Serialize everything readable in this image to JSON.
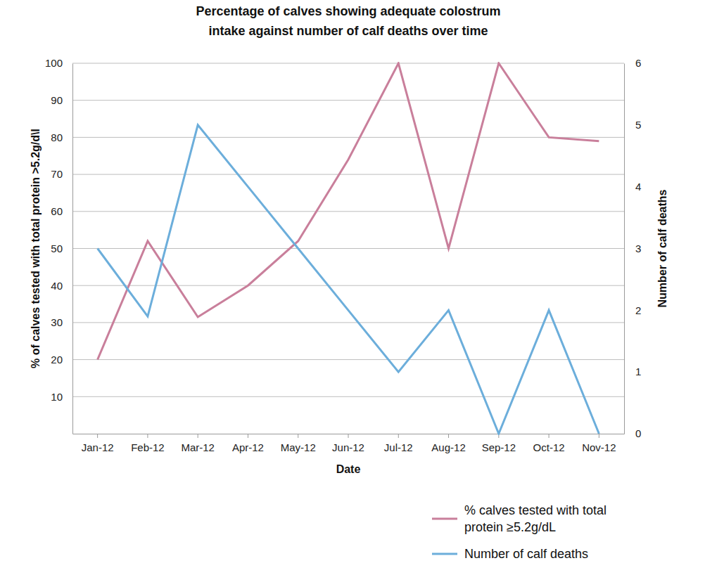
{
  "chart_data": {
    "type": "line",
    "title": "Percentage of calves showing adequate colostrum intake against number of calf deaths over time",
    "x_label": "Date",
    "y_label": "% of calves tested with total protein >5.2g/d\\l",
    "y2_label": "Number of calf deaths",
    "categories": [
      "Jan-12",
      "Feb-12",
      "Mar-12",
      "Apr-12",
      "May-12",
      "Jun-12",
      "Jul-12",
      "Aug-12",
      "Sep-12",
      "Oct-12",
      "Nov-12"
    ],
    "series": [
      {
        "name": "% calves tested with total protein ≥5.2g/dL",
        "color": "#c97f9b",
        "values": [
          20,
          52,
          31.5,
          40,
          52,
          74,
          100,
          50,
          100,
          80,
          79
        ]
      },
      {
        "name": "Number of calf deaths",
        "color": "#6caedb",
        "axis": "y2",
        "values": [
          3,
          1.9,
          5,
          4,
          3,
          2,
          1,
          2,
          0,
          2,
          0
        ]
      }
    ],
    "ylim": [
      0,
      100
    ],
    "yticks": [
      10,
      20,
      30,
      40,
      50,
      60,
      70,
      80,
      90,
      100
    ],
    "y2lim": [
      0,
      6
    ],
    "y2ticks": [
      0,
      1,
      2,
      3,
      4,
      5,
      6
    ],
    "grid": true,
    "legend": "bottom-right"
  }
}
